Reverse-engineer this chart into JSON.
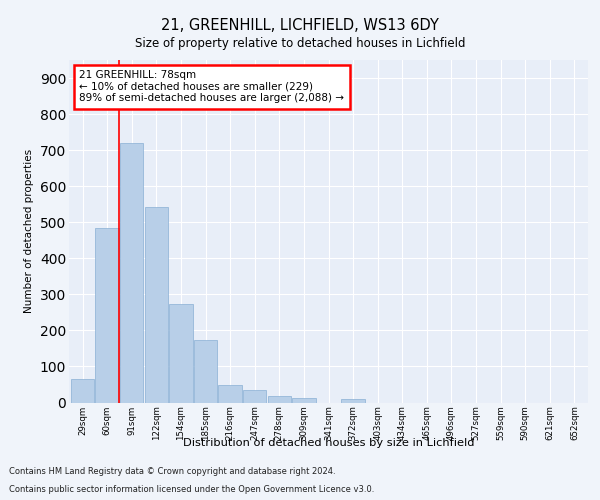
{
  "title1": "21, GREENHILL, LICHFIELD, WS13 6DY",
  "title2": "Size of property relative to detached houses in Lichfield",
  "xlabel": "Distribution of detached houses by size in Lichfield",
  "ylabel": "Number of detached properties",
  "categories": [
    "29sqm",
    "60sqm",
    "91sqm",
    "122sqm",
    "154sqm",
    "185sqm",
    "216sqm",
    "247sqm",
    "278sqm",
    "309sqm",
    "341sqm",
    "372sqm",
    "403sqm",
    "434sqm",
    "465sqm",
    "496sqm",
    "527sqm",
    "559sqm",
    "590sqm",
    "621sqm",
    "652sqm"
  ],
  "values": [
    65,
    483,
    720,
    543,
    272,
    173,
    48,
    35,
    17,
    13,
    0,
    10,
    0,
    0,
    0,
    0,
    0,
    0,
    0,
    0,
    0
  ],
  "bar_color": "#b8cfe8",
  "bar_edgecolor": "#8ab0d4",
  "vline_x": 1.5,
  "vline_color": "red",
  "annotation_text": "21 GREENHILL: 78sqm\n← 10% of detached houses are smaller (229)\n89% of semi-detached houses are larger (2,088) →",
  "annotation_box_color": "white",
  "annotation_box_edgecolor": "red",
  "ylim": [
    0,
    950
  ],
  "yticks": [
    0,
    100,
    200,
    300,
    400,
    500,
    600,
    700,
    800,
    900
  ],
  "footer_line1": "Contains HM Land Registry data © Crown copyright and database right 2024.",
  "footer_line2": "Contains public sector information licensed under the Open Government Licence v3.0.",
  "bg_color": "#f0f4fa",
  "plot_bg_color": "#e8eef8",
  "grid_color": "white",
  "fig_width": 6.0,
  "fig_height": 5.0,
  "dpi": 100
}
